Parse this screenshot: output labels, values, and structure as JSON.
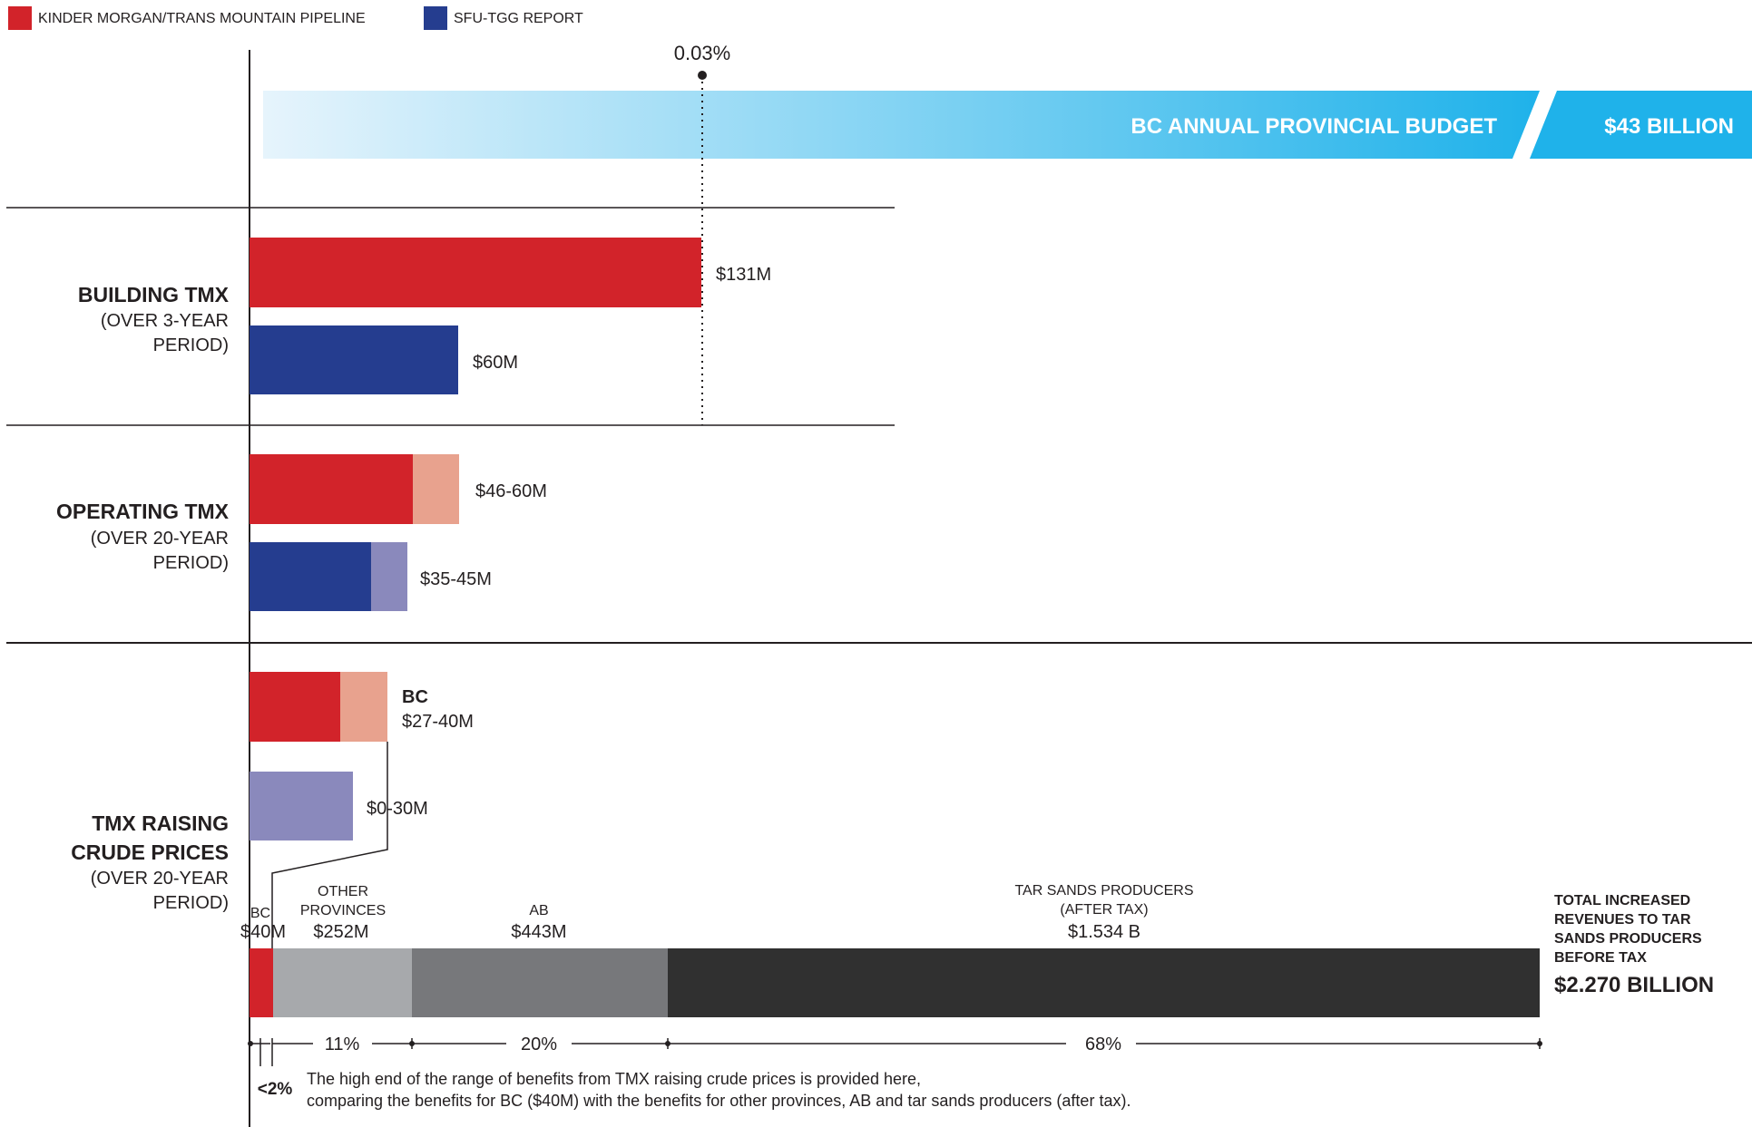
{
  "legend": [
    {
      "label": "KINDER MORGAN/TRANS MOUNTAIN PIPELINE",
      "color": "#d2232a"
    },
    {
      "label": "SFU-TGG REPORT",
      "color": "#253d8f"
    }
  ],
  "budget": {
    "marker_label": "0.03%",
    "label": "BC ANNUAL PROVINCIAL BUDGET",
    "value": "$43 BILLION",
    "colors": {
      "start": "#e6f4fc",
      "end": "#1fb2ea"
    }
  },
  "sections": {
    "building": {
      "title": "BUILDING TMX",
      "sub1": "(OVER 3-YEAR",
      "sub2": "PERIOD)"
    },
    "operating": {
      "title": "OPERATING TMX",
      "sub1": "(OVER 20-YEAR",
      "sub2": "PERIOD)"
    },
    "crude": {
      "title1": "TMX RAISING",
      "title2": "CRUDE PRICES",
      "sub1": "(OVER 20-YEAR",
      "sub2": "PERIOD)"
    }
  },
  "labels": {
    "b_km": "$131M",
    "b_sfu": "$60M",
    "o_km": "$46-60M",
    "o_sfu": "$35-45M",
    "c_bc_title": "BC",
    "c_bc_value": "$27-40M",
    "c_sfu": "$0-30M"
  },
  "distribution": {
    "segments": [
      {
        "name": "BC",
        "value": "$40M",
        "color": "#d2232a"
      },
      {
        "name1": "OTHER",
        "name2": "PROVINCES",
        "value": "$252M",
        "color": "#a7a9ac"
      },
      {
        "name": "AB",
        "value": "$443M",
        "color": "#77787b"
      },
      {
        "name1": "TAR SANDS PRODUCERS",
        "name2": "(AFTER TAX)",
        "value": "$1.534 B",
        "color": "#303030"
      }
    ],
    "total": {
      "line1": "TOTAL INCREASED",
      "line2": "REVENUES TO TAR",
      "line3": "SANDS PRODUCERS",
      "line4": "BEFORE TAX",
      "value": "$2.270 BILLION"
    },
    "percents": {
      "bc": "<2%",
      "other": "11%",
      "ab": "20%",
      "tar": "68%"
    },
    "note1": "The high end of the range of benefits from TMX raising crude prices is provided here,",
    "note2": "comparing the benefits for BC ($40M) with the benefits for other provinces, AB and tar sands producers (after tax)."
  },
  "colors": {
    "km": "#d2232a",
    "km_light": "#e8a28e",
    "sfu": "#253d8f",
    "sfu_light": "#8a89bc"
  },
  "chart_data": {
    "type": "bar",
    "units": "million CAD",
    "series": [
      {
        "name": "KINDER MORGAN/TRANS MOUNTAIN PIPELINE",
        "color": "#d2232a",
        "building": [
          131,
          131
        ],
        "operating": [
          46,
          60
        ],
        "crude_bc": [
          27,
          40
        ]
      },
      {
        "name": "SFU-TGG REPORT",
        "color": "#253d8f",
        "building": [
          60,
          60
        ],
        "operating": [
          35,
          45
        ],
        "crude_bc": [
          0,
          30
        ]
      }
    ],
    "distribution_musd": {
      "BC": 40,
      "OTHER PROVINCES": 252,
      "AB": 443,
      "TAR SANDS PRODUCERS": 1534
    },
    "distribution_total_musd": 2270,
    "distribution_percent": {
      "BC": 2,
      "OTHER PROVINCES": 11,
      "AB": 20,
      "TAR SANDS PRODUCERS": 68
    },
    "budget_percent": 0.03,
    "budget_total_busd": 43
  }
}
